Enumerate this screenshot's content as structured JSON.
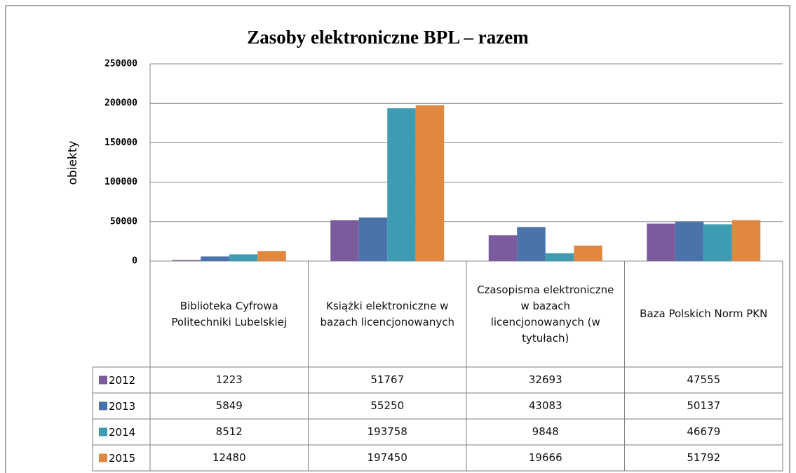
{
  "chart_data": {
    "type": "bar",
    "title": "Zasoby elektroniczne BPL – razem",
    "y_label": "obiekty",
    "categories": [
      "Biblioteka Cyfrowa Politechniki Lubelskiej",
      "Książki elektroniczne w bazach licencjonowanych",
      "Czasopisma elektroniczne w bazach licencjonowanych (w tytułach)",
      "Baza Polskich Norm PKN"
    ],
    "series": [
      {
        "name": "2012",
        "color": "#7a5c9d",
        "values": [
          1223,
          51767,
          32693,
          47555
        ]
      },
      {
        "name": "2013",
        "color": "#4a72ab",
        "values": [
          5849,
          55250,
          43083,
          50137
        ]
      },
      {
        "name": "2014",
        "color": "#3f9bb2",
        "values": [
          8512,
          193758,
          9848,
          46679
        ]
      },
      {
        "name": "2015",
        "color": "#e0883f",
        "values": [
          12480,
          197450,
          19666,
          51792
        ]
      }
    ],
    "ylim": [
      0,
      250000
    ],
    "yticks": [
      0,
      50000,
      100000,
      150000,
      200000,
      250000
    ],
    "grid": true,
    "data_table": true
  }
}
